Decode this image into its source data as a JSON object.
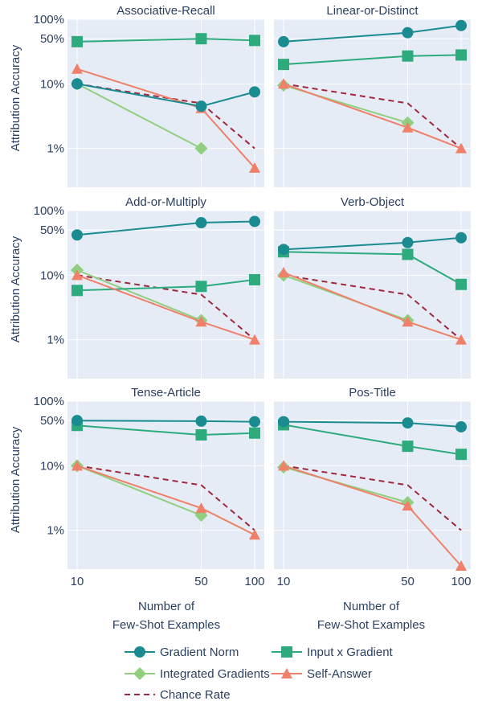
{
  "chart_data": {
    "type": "line",
    "x_values": [
      10,
      50,
      100
    ],
    "x_tick_labels": [
      "10",
      "50",
      "100"
    ],
    "xlabel_line1": "Number of",
    "xlabel_line2": "Few-Shot Examples",
    "ylabel": "Attribution Accuracy",
    "yscale": "log",
    "xscale": "log",
    "ylim": [
      0.0025,
      1.0
    ],
    "y_ticks": [
      {
        "value": 1.0,
        "label": "100%"
      },
      {
        "value": 0.5,
        "label": "50%"
      },
      {
        "value": 0.1,
        "label": "10%"
      },
      {
        "value": 0.01,
        "label": "1%"
      }
    ],
    "grid": true,
    "legend_position": "bottom",
    "colors": {
      "gradient_norm": "#1a8c91",
      "input_x_gradient": "#2eab7c",
      "integrated_gradients": "#8fcf7f",
      "self_answer": "#f0806a",
      "chance_rate": "#a0283c",
      "panel_bg": "#e5ecf6",
      "grid": "#ffffff"
    },
    "legend": [
      {
        "key": "gradient_norm",
        "label": "Gradient Norm",
        "marker": "circle"
      },
      {
        "key": "input_x_gradient",
        "label": "Input x Gradient",
        "marker": "square"
      },
      {
        "key": "integrated_gradients",
        "label": "Integrated Gradients",
        "marker": "diamond"
      },
      {
        "key": "self_answer",
        "label": "Self-Answer",
        "marker": "triangle"
      },
      {
        "key": "chance_rate",
        "label": "Chance Rate",
        "marker": "dash"
      }
    ],
    "panels": [
      {
        "title": "Associative-Recall",
        "series": {
          "gradient_norm": [
            0.1,
            0.045,
            0.075
          ],
          "input_x_gradient": [
            0.45,
            0.5,
            0.47
          ],
          "integrated_gradients": [
            0.1,
            0.01,
            null
          ],
          "self_answer": [
            0.17,
            0.042,
            0.005
          ],
          "chance_rate": [
            0.1,
            0.05,
            0.01
          ]
        }
      },
      {
        "title": "Linear-or-Distinct",
        "series": {
          "gradient_norm": [
            0.45,
            0.62,
            0.8
          ],
          "input_x_gradient": [
            0.2,
            0.27,
            0.28
          ],
          "integrated_gradients": [
            0.095,
            0.025,
            null
          ],
          "self_answer": [
            0.1,
            0.021,
            0.01
          ],
          "chance_rate": [
            0.1,
            0.05,
            0.01
          ]
        }
      },
      {
        "title": "Add-or-Multiply",
        "series": {
          "gradient_norm": [
            0.42,
            0.65,
            0.68
          ],
          "input_x_gradient": [
            0.058,
            0.067,
            0.085
          ],
          "integrated_gradients": [
            0.12,
            0.02,
            null
          ],
          "self_answer": [
            0.1,
            0.019,
            0.01
          ],
          "chance_rate": [
            0.1,
            0.05,
            0.01
          ]
        }
      },
      {
        "title": "Verb-Object",
        "series": {
          "gradient_norm": [
            0.25,
            0.32,
            0.38
          ],
          "input_x_gradient": [
            0.23,
            0.21,
            0.072
          ],
          "integrated_gradients": [
            0.1,
            0.02,
            null
          ],
          "self_answer": [
            0.11,
            0.019,
            0.01
          ],
          "chance_rate": [
            0.1,
            0.05,
            0.01
          ]
        }
      },
      {
        "title": "Tense-Article",
        "series": {
          "gradient_norm": [
            0.5,
            0.49,
            0.48
          ],
          "input_x_gradient": [
            0.42,
            0.3,
            0.32
          ],
          "integrated_gradients": [
            0.1,
            0.017,
            null
          ],
          "self_answer": [
            0.1,
            0.022,
            0.0085
          ],
          "chance_rate": [
            0.1,
            0.05,
            0.01
          ]
        }
      },
      {
        "title": "Pos-Title",
        "series": {
          "gradient_norm": [
            0.48,
            0.46,
            0.4
          ],
          "input_x_gradient": [
            0.43,
            0.2,
            0.15
          ],
          "integrated_gradients": [
            0.095,
            0.027,
            null
          ],
          "self_answer": [
            0.1,
            0.024,
            0.0028
          ],
          "chance_rate": [
            0.1,
            0.05,
            0.01
          ]
        }
      }
    ]
  }
}
